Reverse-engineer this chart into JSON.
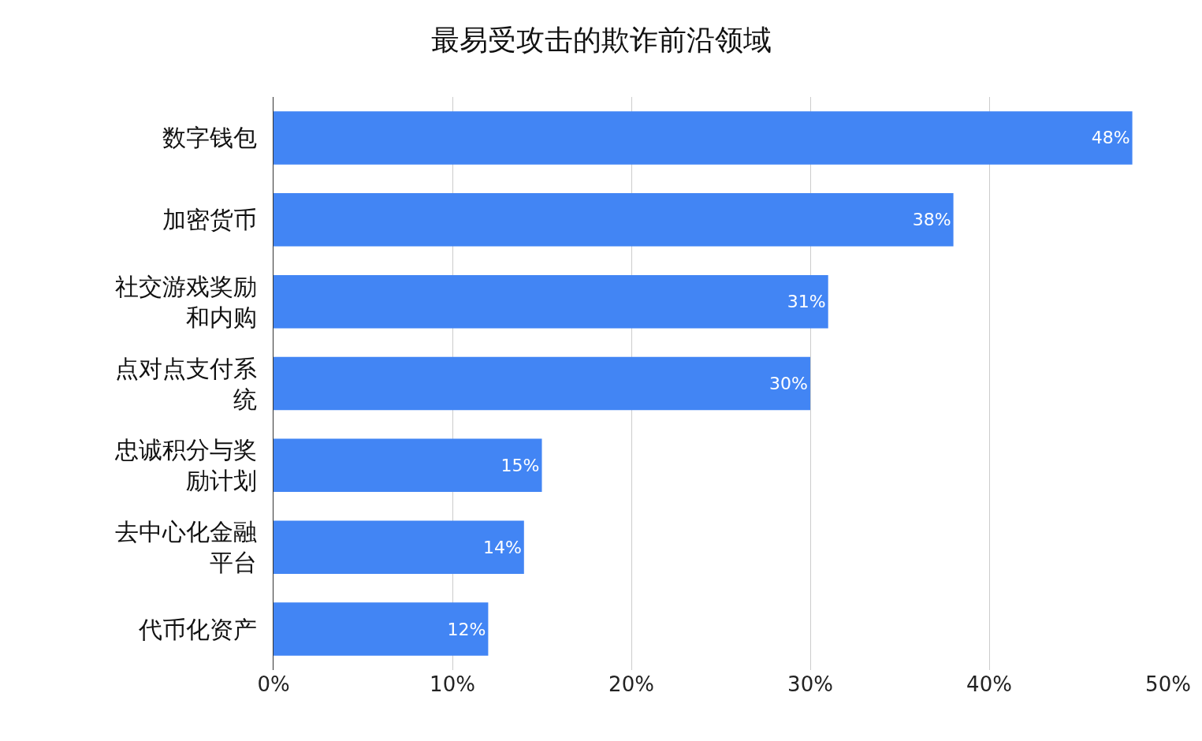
{
  "chart_data": {
    "type": "bar",
    "orientation": "horizontal",
    "title": "最易受攻击的欺诈前沿领域",
    "categories": [
      "数字钱包",
      "加密货币",
      "社交游戏奖励和内购",
      "点对点支付系统",
      "忠诚积分与奖励计划",
      "去中心化金融平台",
      "代币化资产"
    ],
    "values": [
      48,
      38,
      31,
      30,
      15,
      14,
      12
    ],
    "value_labels": [
      "48%",
      "38%",
      "31%",
      "30%",
      "15%",
      "14%",
      "12%"
    ],
    "color": "#4285f4",
    "xlim": [
      0,
      50
    ],
    "xticks": [
      {
        "value": 0,
        "label": "0%"
      },
      {
        "value": 10,
        "label": "10%"
      },
      {
        "value": 20,
        "label": "20%"
      },
      {
        "value": 30,
        "label": "30%"
      },
      {
        "value": 40,
        "label": "40%"
      },
      {
        "value": 50,
        "label": "50%"
      }
    ],
    "grid": "x",
    "legend": false
  }
}
